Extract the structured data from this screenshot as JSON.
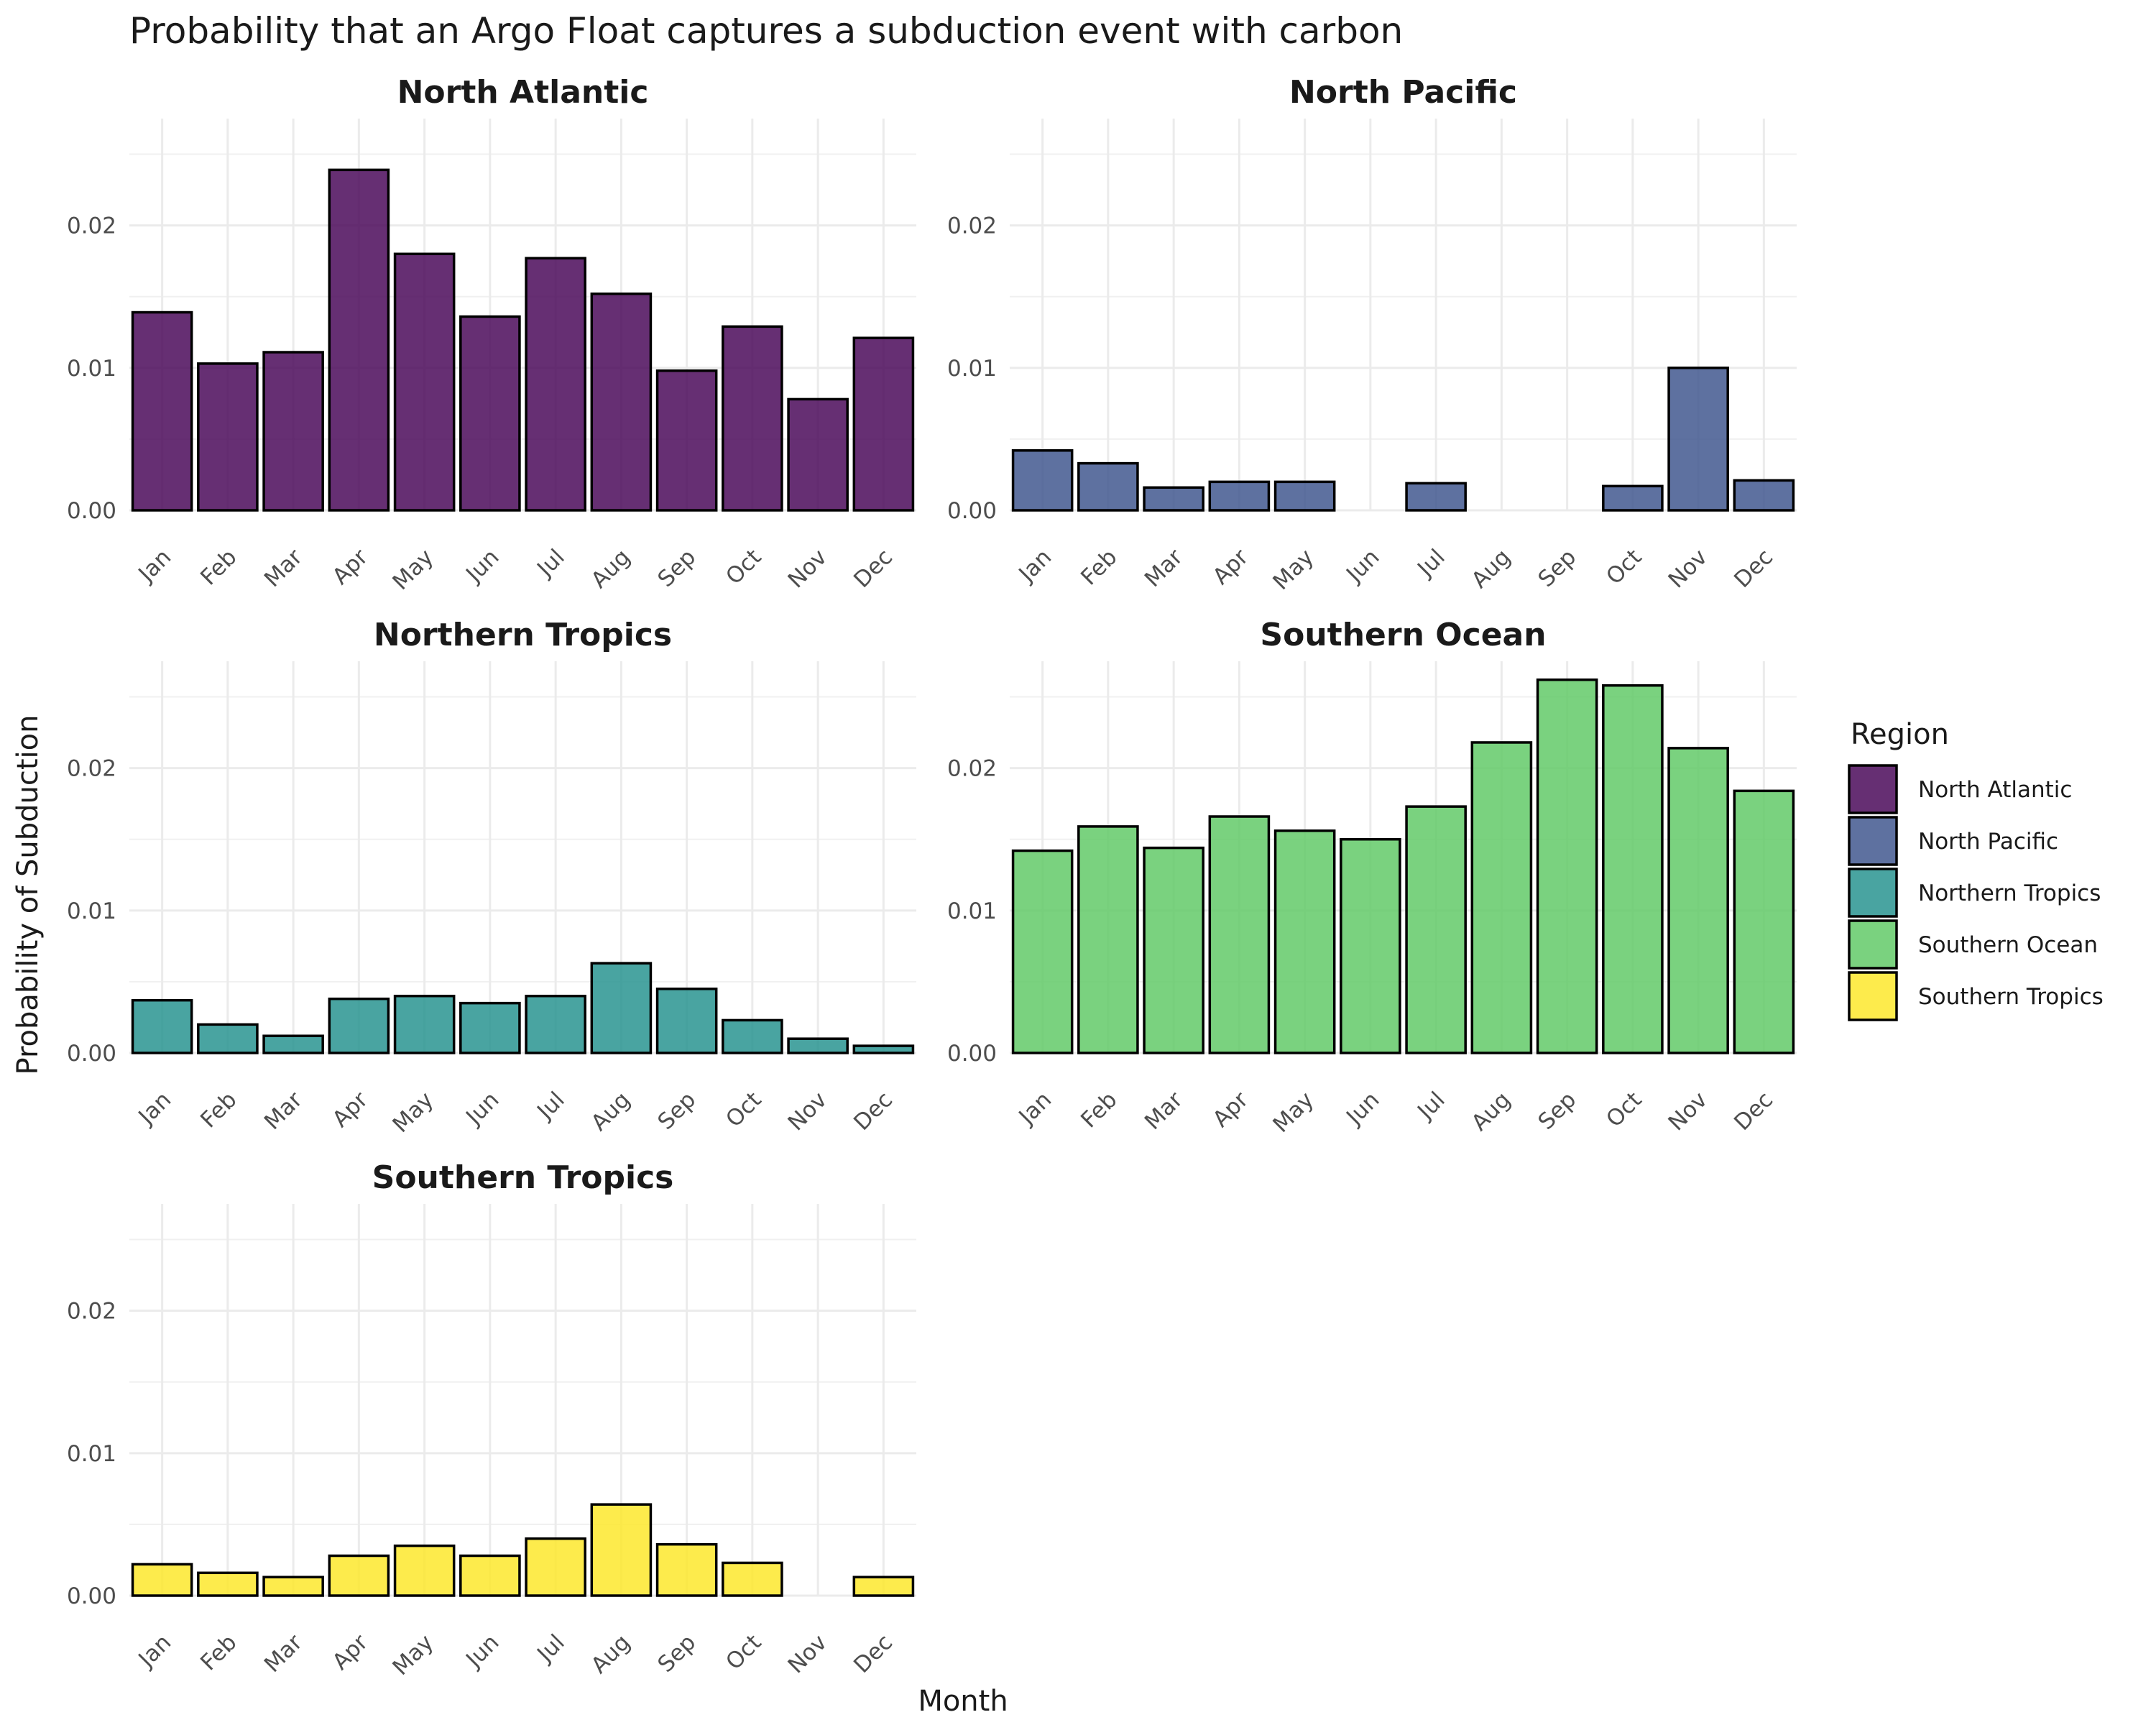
{
  "chart_data": {
    "type": "bar",
    "title": "Probability that an Argo Float captures a subduction event with carbon",
    "xlabel": "Month",
    "ylabel": "Probability of Subduction",
    "ylim": [
      0,
      0.0275
    ],
    "yticks": [
      0.0,
      0.01,
      0.02
    ],
    "ytick_labels": [
      "0.00",
      "0.01",
      "0.02"
    ],
    "grid": true,
    "legend_position": "right",
    "legend_title": "Region",
    "categories": [
      "Jan",
      "Feb",
      "Mar",
      "Apr",
      "May",
      "Jun",
      "Jul",
      "Aug",
      "Sep",
      "Oct",
      "Nov",
      "Dec"
    ],
    "series": [
      {
        "name": "North Atlantic",
        "color": "#440154",
        "values": [
          0.0139,
          0.0103,
          0.0111,
          0.0239,
          0.018,
          0.0136,
          0.0177,
          0.0152,
          0.0098,
          0.0129,
          0.0078,
          0.0121
        ]
      },
      {
        "name": "North Pacific",
        "color": "#3b528b",
        "values": [
          0.0042,
          0.0033,
          0.0016,
          0.002,
          0.002,
          0.0,
          0.0019,
          0.0,
          0.0,
          0.0017,
          0.01,
          0.0021
        ]
      },
      {
        "name": "Northern Tropics",
        "color": "#21908c",
        "values": [
          0.0037,
          0.002,
          0.0012,
          0.0038,
          0.004,
          0.0035,
          0.004,
          0.0063,
          0.0045,
          0.0023,
          0.001,
          0.0005
        ]
      },
      {
        "name": "Southern Ocean",
        "color": "#5dc863",
        "values": [
          0.0142,
          0.0159,
          0.0144,
          0.0166,
          0.0156,
          0.015,
          0.0173,
          0.0218,
          0.0262,
          0.0258,
          0.0214,
          0.0184
        ]
      },
      {
        "name": "Southern Tropics",
        "color": "#fde725",
        "values": [
          0.0022,
          0.0016,
          0.0013,
          0.0028,
          0.0035,
          0.0028,
          0.004,
          0.0064,
          0.0036,
          0.0023,
          0.0,
          0.0013
        ]
      }
    ]
  }
}
